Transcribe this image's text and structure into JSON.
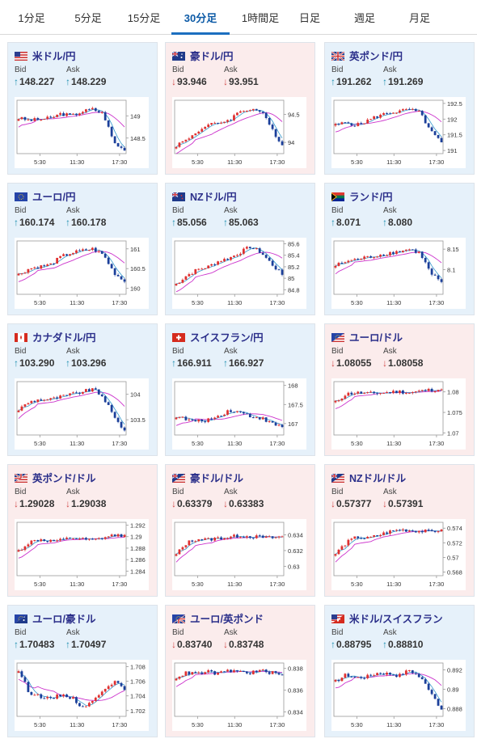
{
  "tabs": [
    {
      "label": "1分足",
      "active": false
    },
    {
      "label": "5分足",
      "active": false
    },
    {
      "label": "15分足",
      "active": false
    },
    {
      "label": "30分足",
      "active": true
    },
    {
      "label": "1時間足",
      "active": false
    },
    {
      "label": "日足",
      "active": false
    },
    {
      "label": "週足",
      "active": false
    },
    {
      "label": "月足",
      "active": false
    }
  ],
  "labels": {
    "bid": "Bid",
    "ask": "Ask"
  },
  "colors": {
    "up_bg": "#e6f1fa",
    "down_bg": "#fbecec",
    "up_arrow": "#1e8fb0",
    "down_arrow": "#d24b4b",
    "title": "#2b2f8a",
    "candle_up": "#e03030",
    "candle_down": "#1b3f9a",
    "ma": "#cc33cc",
    "ma2": "#3399cc"
  },
  "arrows": {
    "up": "↑",
    "down": "↓"
  },
  "pairs": [
    {
      "name": "米ドル/円",
      "flag": "us-flag",
      "dir": "up",
      "bid": "148.227",
      "ask": "148.229",
      "chart_data": {
        "type": "candlestick",
        "x_ticks": [
          "5:30",
          "11:30",
          "17:30"
        ],
        "y_ticks": [
          "149",
          "148.5"
        ],
        "ylim": [
          148.15,
          149.35
        ],
        "shape": [
          148.95,
          148.9,
          148.92,
          148.95,
          149.05,
          149.0,
          149.1,
          149.15,
          149.05,
          148.4,
          148.22
        ]
      }
    },
    {
      "name": "豪ドル/円",
      "flag": "au-flag",
      "dir": "down",
      "bid": "93.946",
      "ask": "93.951",
      "chart_data": {
        "type": "candlestick",
        "x_ticks": [
          "5:30",
          "11:30",
          "17:30"
        ],
        "y_ticks": [
          "94.5",
          "94"
        ],
        "ylim": [
          93.8,
          94.75
        ],
        "shape": [
          93.95,
          94.05,
          94.2,
          94.3,
          94.35,
          94.4,
          94.55,
          94.6,
          94.55,
          94.25,
          93.95
        ]
      }
    },
    {
      "name": "英ポンド/円",
      "flag": "gb-flag",
      "dir": "up",
      "bid": "191.262",
      "ask": "191.269",
      "chart_data": {
        "type": "candlestick",
        "x_ticks": [
          "5:30",
          "11:30",
          "17:30"
        ],
        "y_ticks": [
          "192.5",
          "192",
          "191.5",
          "191"
        ],
        "ylim": [
          190.9,
          192.6
        ],
        "shape": [
          191.8,
          191.9,
          191.8,
          191.95,
          192.1,
          192.2,
          192.25,
          192.3,
          192.2,
          191.6,
          191.26
        ]
      }
    },
    {
      "name": "ユーロ/円",
      "flag": "eu-flag",
      "dir": "up",
      "bid": "160.174",
      "ask": "160.178",
      "chart_data": {
        "type": "candlestick",
        "x_ticks": [
          "5:30",
          "11:30",
          "17:30"
        ],
        "y_ticks": [
          "161",
          "160.5",
          "160"
        ],
        "ylim": [
          159.85,
          161.2
        ],
        "shape": [
          160.35,
          160.5,
          160.55,
          160.6,
          160.8,
          160.9,
          160.95,
          161.0,
          160.85,
          160.4,
          160.17
        ]
      }
    },
    {
      "name": "NZドル/円",
      "flag": "nz-flag",
      "dir": "up",
      "bid": "85.056",
      "ask": "85.063",
      "chart_data": {
        "type": "candlestick",
        "x_ticks": [
          "5:30",
          "11:30",
          "17:30"
        ],
        "y_ticks": [
          "85.6",
          "85.4",
          "85.2",
          "85",
          "84.8"
        ],
        "ylim": [
          84.72,
          85.65
        ],
        "shape": [
          84.9,
          85.05,
          85.15,
          85.2,
          85.3,
          85.35,
          85.45,
          85.55,
          85.45,
          85.25,
          85.06
        ]
      }
    },
    {
      "name": "ランド/円",
      "flag": "za-flag",
      "dir": "up",
      "bid": "8.071",
      "ask": "8.080",
      "chart_data": {
        "type": "candlestick",
        "x_ticks": [
          "5:30",
          "11:30",
          "17:30"
        ],
        "y_ticks": [
          "8.15",
          "8.1"
        ],
        "ylim": [
          8.04,
          8.17
        ],
        "shape": [
          8.11,
          8.12,
          8.125,
          8.13,
          8.135,
          8.14,
          8.145,
          8.15,
          8.14,
          8.09,
          8.07
        ]
      }
    },
    {
      "name": "カナダドル/円",
      "flag": "ca-flag",
      "dir": "up",
      "bid": "103.290",
      "ask": "103.296",
      "chart_data": {
        "type": "candlestick",
        "x_ticks": [
          "5:30",
          "11:30",
          "17:30"
        ],
        "y_ticks": [
          "104",
          "103.5"
        ],
        "ylim": [
          103.2,
          104.25
        ],
        "shape": [
          103.7,
          103.85,
          103.9,
          103.9,
          103.95,
          104.0,
          104.05,
          104.1,
          103.95,
          103.55,
          103.29
        ]
      }
    },
    {
      "name": "スイスフラン/円",
      "flag": "ch-flag",
      "dir": "up",
      "bid": "166.911",
      "ask": "166.927",
      "chart_data": {
        "type": "candlestick",
        "x_ticks": [
          "5:30",
          "11:30",
          "17:30"
        ],
        "y_ticks": [
          "168",
          "167.5",
          "167"
        ],
        "ylim": [
          166.7,
          168.1
        ],
        "shape": [
          167.2,
          167.1,
          167.05,
          167.1,
          167.2,
          167.35,
          167.3,
          167.2,
          167.15,
          167.0,
          166.91
        ]
      }
    },
    {
      "name": "ユーロ/ドル",
      "flag": "eu-us-flag",
      "dir": "down",
      "bid": "1.08055",
      "ask": "1.08058",
      "chart_data": {
        "type": "candlestick",
        "x_ticks": [
          "5:30",
          "11:30",
          "17:30"
        ],
        "y_ticks": [
          "1.08",
          "1.075",
          "1.07"
        ],
        "ylim": [
          1.0695,
          1.0825
        ],
        "shape": [
          1.0775,
          1.0795,
          1.0798,
          1.0796,
          1.0797,
          1.0799,
          1.0801,
          1.0798,
          1.0802,
          1.0805,
          1.0806
        ]
      }
    },
    {
      "name": "英ポンド/ドル",
      "flag": "gb-us-flag",
      "dir": "down",
      "bid": "1.29028",
      "ask": "1.29038",
      "chart_data": {
        "type": "candlestick",
        "x_ticks": [
          "5:30",
          "11:30",
          "17:30"
        ],
        "y_ticks": [
          "1.292",
          "1.29",
          "1.288",
          "1.286",
          "1.284"
        ],
        "ylim": [
          1.2832,
          1.2925
        ],
        "shape": [
          1.2875,
          1.289,
          1.2895,
          1.2892,
          1.2893,
          1.2898,
          1.2895,
          1.2893,
          1.2898,
          1.2902,
          1.2903
        ]
      }
    },
    {
      "name": "豪ドル/ドル",
      "flag": "au-us-flag",
      "dir": "down",
      "bid": "0.63379",
      "ask": "0.63383",
      "chart_data": {
        "type": "candlestick",
        "x_ticks": [
          "5:30",
          "11:30",
          "17:30"
        ],
        "y_ticks": [
          "0.634",
          "0.632",
          "0.63"
        ],
        "ylim": [
          0.6288,
          0.6356
        ],
        "shape": [
          0.6315,
          0.633,
          0.6335,
          0.6334,
          0.6336,
          0.6337,
          0.6339,
          0.6338,
          0.6337,
          0.6336,
          0.6338
        ]
      }
    },
    {
      "name": "NZドル/ドル",
      "flag": "nz-us-flag",
      "dir": "down",
      "bid": "0.57377",
      "ask": "0.57391",
      "chart_data": {
        "type": "candlestick",
        "x_ticks": [
          "5:30",
          "11:30",
          "17:30"
        ],
        "y_ticks": [
          "0.574",
          "0.572",
          "0.57",
          "0.568"
        ],
        "ylim": [
          0.5675,
          0.5748
        ],
        "shape": [
          0.5705,
          0.572,
          0.5728,
          0.5726,
          0.573,
          0.5735,
          0.5738,
          0.5737,
          0.5736,
          0.5735,
          0.5738
        ]
      }
    },
    {
      "name": "ユーロ/豪ドル",
      "flag": "eu-au-flag",
      "dir": "up",
      "bid": "1.70483",
      "ask": "1.70497",
      "chart_data": {
        "type": "candlestick",
        "x_ticks": [
          "5:30",
          "11:30",
          "17:30"
        ],
        "y_ticks": [
          "1.708",
          "1.706",
          "1.704",
          "1.702"
        ],
        "ylim": [
          1.7012,
          1.7085
        ],
        "shape": [
          1.7075,
          1.7045,
          1.704,
          1.7035,
          1.7042,
          1.7038,
          1.7025,
          1.7032,
          1.705,
          1.706,
          1.7048
        ]
      }
    },
    {
      "name": "ユーロ/英ポンド",
      "flag": "eu-gb-flag",
      "dir": "down",
      "bid": "0.83740",
      "ask": "0.83748",
      "chart_data": {
        "type": "candlestick",
        "x_ticks": [
          "5:30",
          "11:30",
          "17:30"
        ],
        "y_ticks": [
          "0.838",
          "0.836",
          "0.834"
        ],
        "ylim": [
          0.8336,
          0.8385
        ],
        "shape": [
          0.8372,
          0.8376,
          0.8375,
          0.8377,
          0.8375,
          0.8378,
          0.8377,
          0.8376,
          0.8378,
          0.8376,
          0.8374
        ]
      }
    },
    {
      "name": "米ドル/スイスフラン",
      "flag": "us-ch-flag",
      "dir": "up",
      "bid": "0.88795",
      "ask": "0.88810",
      "chart_data": {
        "type": "candlestick",
        "x_ticks": [
          "5:30",
          "11:30",
          "17:30"
        ],
        "y_ticks": [
          "0.892",
          "0.89",
          "0.888"
        ],
        "ylim": [
          0.8872,
          0.8927
        ],
        "shape": [
          0.8908,
          0.8915,
          0.8912,
          0.8913,
          0.8917,
          0.8916,
          0.8914,
          0.892,
          0.8912,
          0.8898,
          0.8879
        ]
      }
    }
  ]
}
